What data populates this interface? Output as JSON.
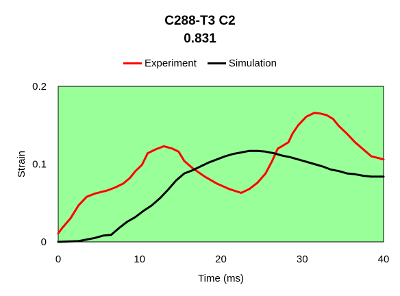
{
  "chart_data": {
    "type": "line",
    "title": "C288-T3 C2",
    "subtitle": "0.831",
    "xlabel": "Time (ms)",
    "ylabel": "Strain",
    "xlim": [
      0,
      40
    ],
    "ylim": [
      0,
      0.2
    ],
    "x_ticks": [
      0,
      10,
      20,
      30,
      40
    ],
    "y_ticks": [
      0,
      0.1,
      0.2
    ],
    "y_tick_labels": [
      "0",
      "0.1",
      "0.2"
    ],
    "background_color": "#99FF99",
    "grid": false,
    "legend_position": "top",
    "series": [
      {
        "name": "Experiment",
        "color": "#FF0000",
        "x": [
          0,
          0.5,
          1.5,
          2.5,
          3.5,
          4.5,
          6,
          7,
          8,
          8.8,
          9.5,
          10.3,
          11,
          12,
          13,
          14,
          14.8,
          15.5,
          16.5,
          18,
          19.5,
          21,
          22.5,
          23.5,
          24.5,
          25.5,
          26.3,
          27,
          27.5,
          28.3,
          28.8,
          29.5,
          30.5,
          31.5,
          32.2,
          33,
          33.8,
          34.5,
          35.5,
          36.5,
          37.5,
          38.5,
          39.3,
          40
        ],
        "y": [
          0.011,
          0.018,
          0.03,
          0.047,
          0.058,
          0.062,
          0.066,
          0.07,
          0.075,
          0.082,
          0.091,
          0.099,
          0.114,
          0.119,
          0.123,
          0.12,
          0.116,
          0.104,
          0.095,
          0.084,
          0.075,
          0.068,
          0.063,
          0.068,
          0.076,
          0.088,
          0.104,
          0.12,
          0.123,
          0.128,
          0.139,
          0.15,
          0.161,
          0.166,
          0.165,
          0.163,
          0.158,
          0.149,
          0.139,
          0.128,
          0.119,
          0.11,
          0.108,
          0.106
        ]
      },
      {
        "name": "Simulation",
        "color": "#000000",
        "x": [
          0,
          2.5,
          3.5,
          4.5,
          5.5,
          6.5,
          7.5,
          8.5,
          9.5,
          10.5,
          11.5,
          12.5,
          13.5,
          14.5,
          15.5,
          16.5,
          17.5,
          18.5,
          19.5,
          20.5,
          21.5,
          22.5,
          23.5,
          24.5,
          25.5,
          26.5,
          27.5,
          28.5,
          29.5,
          30.5,
          31.5,
          32.5,
          33.5,
          34.5,
          35.5,
          36.5,
          37.5,
          38.5,
          39.5,
          40
        ],
        "y": [
          0,
          0.001,
          0.003,
          0.005,
          0.008,
          0.009,
          0.018,
          0.026,
          0.032,
          0.04,
          0.047,
          0.056,
          0.067,
          0.079,
          0.088,
          0.092,
          0.097,
          0.102,
          0.106,
          0.11,
          0.113,
          0.115,
          0.117,
          0.117,
          0.116,
          0.114,
          0.111,
          0.109,
          0.106,
          0.103,
          0.1,
          0.097,
          0.093,
          0.091,
          0.088,
          0.087,
          0.085,
          0.084,
          0.084,
          0.084
        ]
      }
    ]
  }
}
